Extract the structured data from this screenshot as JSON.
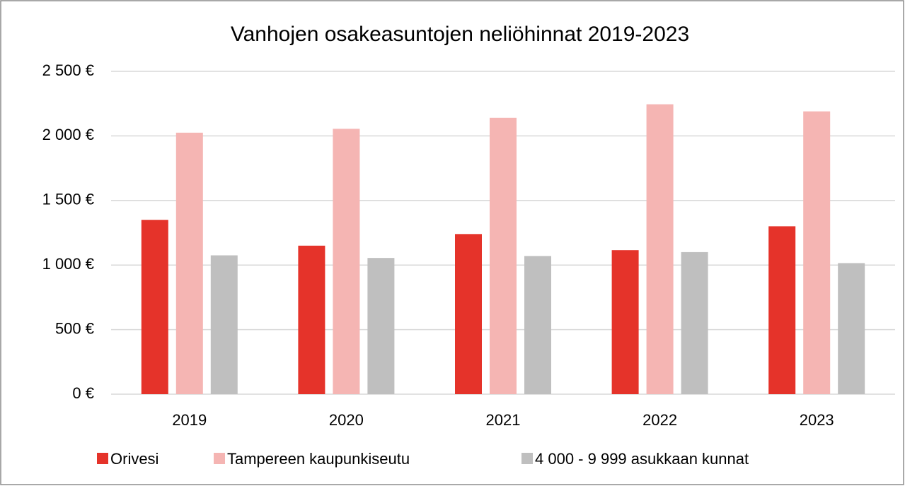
{
  "chart_data": {
    "type": "bar",
    "title": "Vanhojen osakeasuntojen neliöhinnat 2019-2023",
    "categories": [
      "2019",
      "2020",
      "2021",
      "2022",
      "2023"
    ],
    "series": [
      {
        "name": "Orivesi",
        "color": "#e5332a",
        "values": [
          1350,
          1150,
          1240,
          1115,
          1300
        ]
      },
      {
        "name": "Tampereen kaupunkiseutu",
        "color": "#f5b5b3",
        "values": [
          2025,
          2055,
          2140,
          2245,
          2190
        ]
      },
      {
        "name": "4 000 - 9 999 asukkaan kunnat",
        "color": "#bfbfbf",
        "values": [
          1075,
          1055,
          1070,
          1100,
          1015
        ]
      }
    ],
    "ylim": [
      0,
      2500
    ],
    "yticks": [
      {
        "value": 0,
        "label": "0 €"
      },
      {
        "value": 500,
        "label": "500 €"
      },
      {
        "value": 1000,
        "label": "1 000 €"
      },
      {
        "value": 1500,
        "label": "1 500 €"
      },
      {
        "value": 2000,
        "label": "2 000 €"
      },
      {
        "value": 2500,
        "label": "2 500 €"
      }
    ],
    "grid": true,
    "legend": "bottom"
  }
}
